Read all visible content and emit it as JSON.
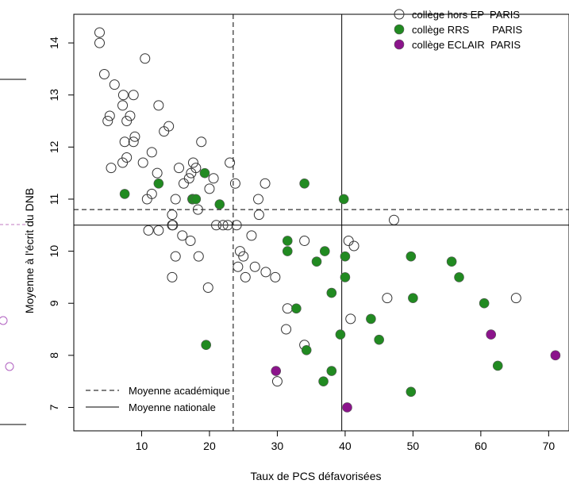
{
  "chart_data": {
    "type": "scatter",
    "xlabel": "Taux de PCS défavorisées",
    "ylabel": "Moyenne à l'écrit du DNB",
    "xlim": [
      0,
      73
    ],
    "ylim": [
      6.55,
      14.55
    ],
    "x_ticks": [
      10,
      20,
      30,
      40,
      50,
      60,
      70
    ],
    "y_ticks": [
      7,
      8,
      9,
      10,
      11,
      12,
      13,
      14
    ],
    "grid": false,
    "legend_placement": "top-right",
    "reference_lines": [
      {
        "name": "Moyenne académique",
        "style": "dashed",
        "x": 23.5,
        "y": 10.8
      },
      {
        "name": "Moyenne nationale",
        "style": "solid",
        "x": 39.5,
        "y": 10.5
      }
    ],
    "series": [
      {
        "name": "collège hors EP  PARIS",
        "marker": "open-circle",
        "color": "#333333",
        "points": [
          [
            3.8,
            14.2
          ],
          [
            3.8,
            14.0
          ],
          [
            4.5,
            13.4
          ],
          [
            6.0,
            13.2
          ],
          [
            10.5,
            13.7
          ],
          [
            7.3,
            13.0
          ],
          [
            8.8,
            13.0
          ],
          [
            7.2,
            12.8
          ],
          [
            12.5,
            12.8
          ],
          [
            5.0,
            12.5
          ],
          [
            5.3,
            12.6
          ],
          [
            7.8,
            12.5
          ],
          [
            8.3,
            12.6
          ],
          [
            9.0,
            12.2
          ],
          [
            8.8,
            12.1
          ],
          [
            14.0,
            12.4
          ],
          [
            13.3,
            12.3
          ],
          [
            18.8,
            12.1
          ],
          [
            7.5,
            12.1
          ],
          [
            11.5,
            11.9
          ],
          [
            7.8,
            11.8
          ],
          [
            7.2,
            11.7
          ],
          [
            5.5,
            11.6
          ],
          [
            10.2,
            11.7
          ],
          [
            15.5,
            11.6
          ],
          [
            17.6,
            11.7
          ],
          [
            18.0,
            11.6
          ],
          [
            17.0,
            11.4
          ],
          [
            12.3,
            11.5
          ],
          [
            16.2,
            11.3
          ],
          [
            17.3,
            11.5
          ],
          [
            23.0,
            11.7
          ],
          [
            20.6,
            11.4
          ],
          [
            23.8,
            11.3
          ],
          [
            28.2,
            11.3
          ],
          [
            20.0,
            11.2
          ],
          [
            11.5,
            11.1
          ],
          [
            10.8,
            11.0
          ],
          [
            15.0,
            11.0
          ],
          [
            17.5,
            11.0
          ],
          [
            27.2,
            11.0
          ],
          [
            18.3,
            10.8
          ],
          [
            14.5,
            10.7
          ],
          [
            27.3,
            10.7
          ],
          [
            14.5,
            10.5
          ],
          [
            14.6,
            10.5
          ],
          [
            21.0,
            10.5
          ],
          [
            22.0,
            10.5
          ],
          [
            22.7,
            10.5
          ],
          [
            24.0,
            10.5
          ],
          [
            47.2,
            10.6
          ],
          [
            11.0,
            10.4
          ],
          [
            12.5,
            10.4
          ],
          [
            16.0,
            10.3
          ],
          [
            26.2,
            10.3
          ],
          [
            17.2,
            10.2
          ],
          [
            34.0,
            10.2
          ],
          [
            40.5,
            10.2
          ],
          [
            41.3,
            10.1
          ],
          [
            24.5,
            10.0
          ],
          [
            25.0,
            9.9
          ],
          [
            15.0,
            9.9
          ],
          [
            18.4,
            9.9
          ],
          [
            24.2,
            9.7
          ],
          [
            26.7,
            9.7
          ],
          [
            25.3,
            9.5
          ],
          [
            28.3,
            9.6
          ],
          [
            29.7,
            9.5
          ],
          [
            14.5,
            9.5
          ],
          [
            19.8,
            9.3
          ],
          [
            46.2,
            9.1
          ],
          [
            65.2,
            9.1
          ],
          [
            31.5,
            8.9
          ],
          [
            31.3,
            8.5
          ],
          [
            40.8,
            8.7
          ],
          [
            34.0,
            8.2
          ],
          [
            30.0,
            7.5
          ]
        ]
      },
      {
        "name": "collège RRS        PARIS",
        "marker": "filled-circle",
        "color": "#218a21",
        "points": [
          [
            7.5,
            11.1
          ],
          [
            12.5,
            11.3
          ],
          [
            17.5,
            11.0
          ],
          [
            18.0,
            11.0
          ],
          [
            19.3,
            11.5
          ],
          [
            21.5,
            10.9
          ],
          [
            34.0,
            11.3
          ],
          [
            39.8,
            11.0
          ],
          [
            31.5,
            10.2
          ],
          [
            31.5,
            10.0
          ],
          [
            37.0,
            10.0
          ],
          [
            35.8,
            9.8
          ],
          [
            40.0,
            9.9
          ],
          [
            49.7,
            9.9
          ],
          [
            55.7,
            9.8
          ],
          [
            32.8,
            8.9
          ],
          [
            38.0,
            9.2
          ],
          [
            40.0,
            9.5
          ],
          [
            56.8,
            9.5
          ],
          [
            50.0,
            9.1
          ],
          [
            60.5,
            9.0
          ],
          [
            43.8,
            8.7
          ],
          [
            45.0,
            8.3
          ],
          [
            39.3,
            8.4
          ],
          [
            19.5,
            8.2
          ],
          [
            34.3,
            8.1
          ],
          [
            38.0,
            7.7
          ],
          [
            36.8,
            7.5
          ],
          [
            62.5,
            7.8
          ],
          [
            49.7,
            7.3
          ]
        ]
      },
      {
        "name": "collège ECLAIR  PARIS",
        "marker": "filled-circle",
        "color": "#8b148b",
        "points": [
          [
            29.8,
            7.7
          ],
          [
            61.5,
            8.4
          ],
          [
            71.0,
            8.0
          ],
          [
            40.3,
            7.0
          ]
        ]
      }
    ]
  }
}
